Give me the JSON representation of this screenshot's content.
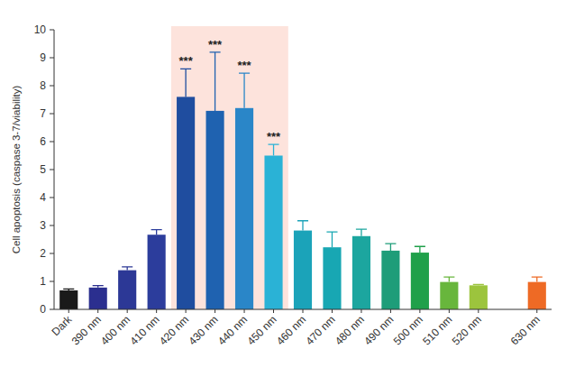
{
  "chart_data": {
    "type": "bar",
    "y_label": "Cell apoptosis (caspase 3-7/viability)",
    "categories": [
      "Dark",
      "390 nm",
      "400 nm",
      "410 nm",
      "420 nm",
      "430 nm",
      "440 nm",
      "450 nm",
      "460 nm",
      "470 nm",
      "480 nm",
      "490 nm",
      "500 nm",
      "510 nm",
      "520 nm",
      null,
      "630 nm"
    ],
    "values": [
      0.68,
      0.78,
      1.4,
      2.67,
      7.6,
      7.1,
      7.2,
      5.5,
      2.82,
      2.22,
      2.62,
      2.1,
      2.03,
      0.98,
      0.86,
      null,
      0.98
    ],
    "errors": [
      0.05,
      0.07,
      0.12,
      0.18,
      1.0,
      2.1,
      1.25,
      0.4,
      0.35,
      0.55,
      0.25,
      0.25,
      0.22,
      0.18,
      0.03,
      null,
      0.18
    ],
    "colors": [
      "#1a1a1a",
      "#2b2f8f",
      "#2c3896",
      "#2c3d9c",
      "#1f4d9f",
      "#1f62b0",
      "#2a86c8",
      "#2ab2d6",
      "#1ba3b9",
      "#18a7b3",
      "#1ca69f",
      "#1e9d79",
      "#20a04a",
      "#68b63c",
      "#9cc43d",
      "#cccccc",
      "#ee6a25"
    ],
    "annotations": [
      {
        "text": "***",
        "category": "420 nm"
      },
      {
        "text": "***",
        "category": "430 nm"
      },
      {
        "text": "***",
        "category": "440 nm"
      },
      {
        "text": "***",
        "category": "450 nm"
      }
    ],
    "ylim": [
      0,
      10
    ],
    "yticks": [
      0,
      1,
      2,
      3,
      4,
      5,
      6,
      7,
      8,
      9,
      10
    ],
    "grid": false
  }
}
